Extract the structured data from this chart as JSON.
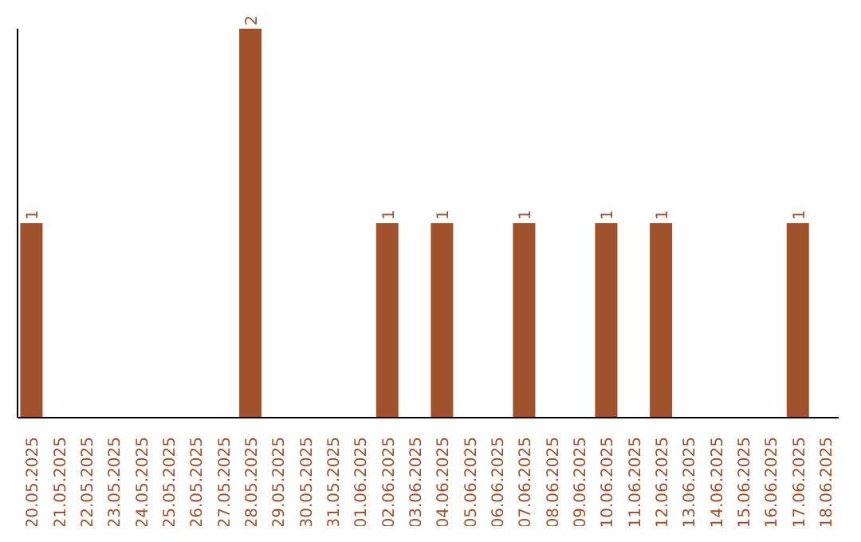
{
  "chart_data": {
    "type": "bar",
    "categories": [
      "20.05.2025",
      "21.05.2025",
      "22.05.2025",
      "23.05.2025",
      "24.05.2025",
      "25.05.2025",
      "26.05.2025",
      "27.05.2025",
      "28.05.2025",
      "29.05.2025",
      "30.05.2025",
      "31.05.2025",
      "01.06.2025",
      "02.06.2025",
      "03.06.2025",
      "04.06.2025",
      "05.06.2025",
      "06.06.2025",
      "07.06.2025",
      "08.06.2025",
      "09.06.2025",
      "10.06.2025",
      "11.06.2025",
      "12.06.2025",
      "13.06.2025",
      "14.06.2025",
      "15.06.2025",
      "16.06.2025",
      "17.06.2025",
      "18.06.2025"
    ],
    "values": [
      1,
      0,
      0,
      0,
      0,
      0,
      0,
      0,
      2,
      0,
      0,
      0,
      0,
      1,
      0,
      1,
      0,
      0,
      1,
      0,
      0,
      1,
      0,
      1,
      0,
      0,
      0,
      0,
      1,
      0
    ],
    "value_labels": [
      "1",
      null,
      null,
      null,
      null,
      null,
      null,
      null,
      "2",
      null,
      null,
      null,
      null,
      "1",
      null,
      "1",
      null,
      null,
      "1",
      null,
      null,
      "1",
      null,
      "1",
      null,
      null,
      null,
      null,
      "1",
      null
    ],
    "color": "#a0522d",
    "tick_labels": "x",
    "grid": false,
    "legend": false
  }
}
